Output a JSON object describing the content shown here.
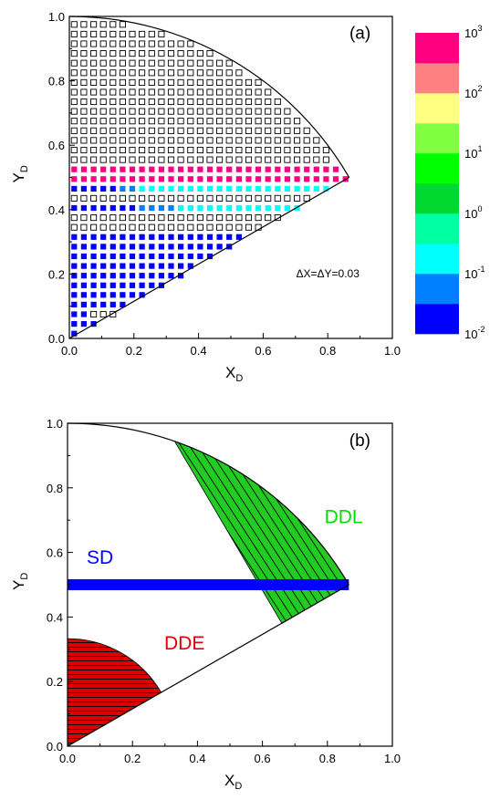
{
  "chart_data": [
    {
      "type": "heatmap",
      "panel_label": "(a)",
      "xlabel_main": "X",
      "xlabel_sub": "D",
      "ylabel_main": "Y",
      "ylabel_sub": "D",
      "xlim": [
        0.0,
        1.0
      ],
      "ylim": [
        0.0,
        1.0
      ],
      "xticks": [
        "0.0",
        "0.2",
        "0.4",
        "0.6",
        "0.8",
        "1.0"
      ],
      "yticks": [
        "0.0",
        "0.2",
        "0.4",
        "0.6",
        "0.8",
        "1.0"
      ],
      "grid": false,
      "annotation": "ΔX=ΔY=0.03",
      "cell_step": 0.03,
      "domain": "sector bounded by unit circle, line Y = X/√3 and Y axis",
      "colorbar": {
        "placement": "right",
        "bands": [
          "#0000ff",
          "#0080ff",
          "#00ffff",
          "#00ffa0",
          "#00d830",
          "#00ff00",
          "#80ff40",
          "#ffff80",
          "#ff8080",
          "#ff0080"
        ],
        "tick_base": "10",
        "tick_exponents": [
          "-2",
          "-1",
          "0",
          "1",
          "2",
          "3"
        ]
      },
      "rows": [
        {
          "y": 0.51,
          "color": "#ff0080",
          "x_min": 0.0,
          "x_max": 0.85
        },
        {
          "y": 0.48,
          "color": "#00ffff",
          "x_min": 0.0,
          "x_max": 0.81
        },
        {
          "y": 0.54,
          "color": "#00ffff",
          "x_min": 0.0,
          "x_max": 0.81
        },
        {
          "y": 0.45,
          "color": "#0000ff",
          "x_min": 0.0,
          "x_max": 0.15,
          "rest_color": "#00ffff"
        },
        {
          "y": 0.57,
          "color": "#0000ff",
          "x_min": 0.0,
          "x_max": 0.81,
          "rest_color": "#ffffff"
        }
      ],
      "filled_below_y": 0.57,
      "open_above_y": 0.57,
      "mid_band": {
        "y_range": [
          0.33,
          0.45
        ],
        "x_range": [
          0.15,
          0.66
        ],
        "colors": [
          "#0080ff",
          "#00ffff"
        ]
      }
    },
    {
      "type": "area",
      "panel_label": "(b)",
      "xlabel_main": "X",
      "xlabel_sub": "D",
      "ylabel_main": "Y",
      "ylabel_sub": "D",
      "xlim": [
        0.0,
        1.0
      ],
      "ylim": [
        0.0,
        1.0
      ],
      "xticks": [
        "0.0",
        "0.2",
        "0.4",
        "0.6",
        "0.8",
        "1.0"
      ],
      "yticks": [
        "0.0",
        "0.2",
        "0.4",
        "0.6",
        "0.8",
        "1.0"
      ],
      "grid": false,
      "regions": [
        {
          "name": "SD",
          "color": "#0000ff",
          "y": 0.5,
          "x_range": [
            0.0,
            0.866
          ]
        },
        {
          "name": "DDL",
          "color": "#00cc00",
          "polygon": [
            [
              0.33,
              0.944
            ],
            [
              0.866,
              0.5
            ],
            [
              0.66,
              0.38
            ]
          ],
          "hatch": "diagonal"
        },
        {
          "name": "DDE",
          "color": "#dd0000",
          "radius": 0.333,
          "hatch": "horizontal"
        }
      ]
    }
  ]
}
